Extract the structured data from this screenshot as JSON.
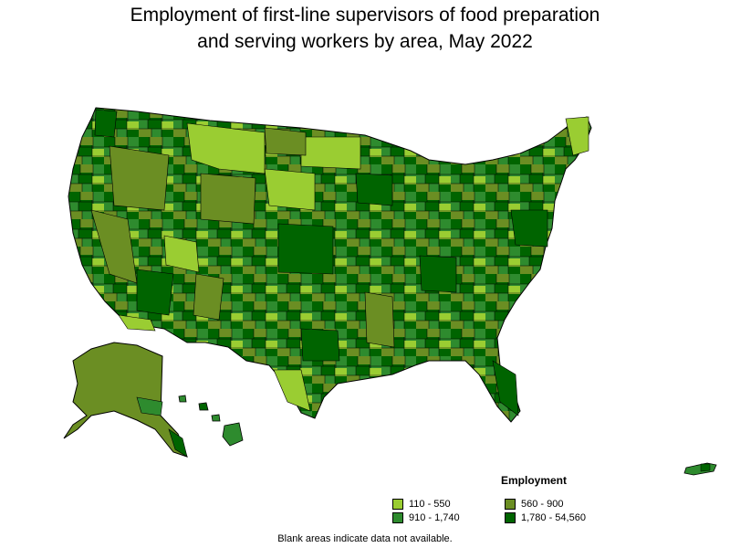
{
  "title": {
    "line1": "Employment of first-line supervisors of food preparation",
    "line2": "and serving workers by area, May 2022"
  },
  "legend": {
    "title": "Employment",
    "items": [
      {
        "label": "110 - 550",
        "color": "#9acd32"
      },
      {
        "label": "560 - 900",
        "color": "#6b8e23"
      },
      {
        "label": "910 - 1,740",
        "color": "#2e8b2e"
      },
      {
        "label": "1,780 - 54,560",
        "color": "#006400"
      }
    ]
  },
  "footnote": "Blank areas indicate data not available."
}
